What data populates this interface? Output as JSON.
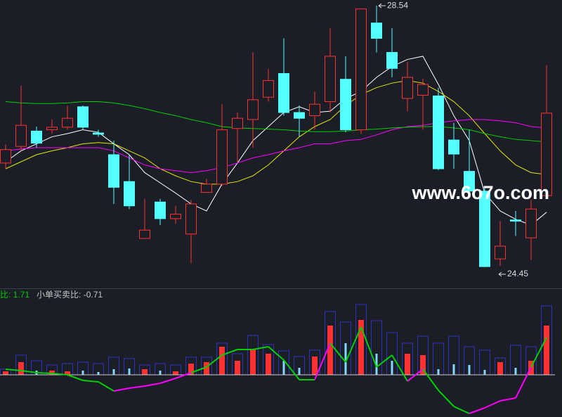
{
  "chart_data": [
    {
      "type": "candlestick",
      "ylim": [
        24.23,
        28.63
      ],
      "open": [
        26.08,
        26.34,
        26.58,
        26.6,
        26.64,
        26.96,
        26.55,
        26.21,
        25.79,
        24.9,
        25.47,
        25.21,
        24.97,
        25.62,
        25.75,
        26.62,
        26.76,
        27.11,
        27.48,
        26.87,
        26.82,
        27.04,
        27.39,
        26.6,
        28.27,
        27.81,
        27.09,
        27.14,
        27.13,
        26.44,
        25.95,
        25.64,
        24.58,
        25.19,
        24.91,
        25.57
      ],
      "high": [
        26.37,
        27.29,
        26.65,
        26.76,
        26.98,
        26.98,
        26.6,
        26.43,
        26.21,
        25.52,
        25.52,
        25.41,
        25.5,
        25.83,
        27.0,
        26.87,
        27.81,
        27.55,
        28.03,
        26.98,
        27.2,
        28.19,
        27.75,
        28.5,
        28.54,
        28.19,
        27.66,
        27.4,
        27.26,
        26.71,
        26.6,
        25.72,
        25.17,
        25.33,
        25.5,
        27.61
      ],
      "low": [
        25.99,
        26.27,
        26.32,
        26.54,
        26.6,
        26.6,
        26.49,
        25.44,
        25.36,
        24.9,
        25.11,
        25.13,
        24.51,
        25.62,
        25.72,
        26.1,
        26.32,
        27.04,
        26.82,
        26.49,
        26.6,
        26.87,
        26.56,
        26.54,
        27.81,
        27.42,
        26.89,
        26.6,
        25.97,
        25.99,
        25.61,
        24.45,
        24.47,
        24.94,
        24.56,
        25.55
      ],
      "close": [
        26.29,
        26.67,
        26.39,
        26.64,
        26.78,
        26.64,
        26.53,
        25.7,
        25.41,
        25.03,
        25.21,
        25.28,
        25.44,
        25.75,
        26.6,
        26.78,
        27.07,
        27.37,
        26.87,
        26.78,
        27.0,
        27.75,
        26.6,
        28.49,
        28.03,
        27.56,
        27.42,
        27.31,
        25.99,
        26.22,
        25.64,
        24.46,
        24.78,
        25.17,
        25.36,
        26.86
      ],
      "up_color": "#ff3232",
      "down_color": "#54ffff",
      "lines": [
        {
          "color": "#ffffff",
          "values": [
            26.1,
            26.27,
            26.38,
            26.49,
            26.54,
            26.6,
            26.56,
            26.38,
            26.21,
            25.93,
            25.77,
            25.61,
            25.44,
            25.33,
            25.75,
            26.08,
            26.43,
            26.65,
            26.87,
            26.96,
            26.87,
            26.89,
            27.09,
            27.2,
            27.42,
            27.59,
            27.7,
            27.75,
            27.31,
            26.82,
            26.43,
            25.61,
            25.33,
            25.2,
            25.11,
            25.31
          ]
        },
        {
          "color": "#e6e600",
          "values": [
            25.99,
            26.1,
            26.21,
            26.27,
            26.32,
            26.38,
            26.4,
            26.38,
            26.27,
            26.16,
            25.99,
            25.88,
            25.79,
            25.75,
            25.75,
            25.79,
            25.88,
            26.05,
            26.27,
            26.49,
            26.65,
            26.76,
            26.98,
            27.15,
            27.26,
            27.33,
            27.37,
            27.33,
            27.2,
            27.04,
            26.82,
            26.54,
            26.27,
            26.05,
            25.93,
            25.9
          ]
        },
        {
          "color": "#ff00ff",
          "values": [
            26.27,
            26.3,
            26.32,
            26.32,
            26.32,
            26.32,
            26.32,
            26.27,
            26.16,
            26.05,
            25.99,
            25.96,
            25.93,
            25.96,
            26.01,
            26.08,
            26.16,
            26.21,
            26.27,
            26.32,
            26.38,
            26.38,
            26.43,
            26.45,
            26.52,
            26.6,
            26.65,
            26.67,
            26.71,
            26.74,
            26.76,
            26.76,
            26.74,
            26.71,
            26.65,
            26.63
          ]
        },
        {
          "color": "#00d000",
          "values": [
            27.04,
            27.02,
            27.01,
            27.01,
            27.02,
            27.04,
            27.04,
            27.02,
            26.98,
            26.93,
            26.87,
            26.82,
            26.76,
            26.71,
            26.65,
            26.63,
            26.62,
            26.61,
            26.6,
            26.58,
            26.57,
            26.57,
            26.58,
            26.6,
            26.61,
            26.63,
            26.64,
            26.65,
            26.65,
            26.63,
            26.6,
            26.54,
            26.49,
            26.45,
            26.43,
            26.41
          ]
        }
      ],
      "watermark": "www.6o7o.com"
    },
    {
      "type": "indicator",
      "ylim": [
        -6,
        12.3
      ],
      "legend": [
        {
          "text": "比: 1.71",
          "color": "#00d000"
        },
        {
          "text": "小单买卖比: -0.71",
          "color": "#c8c8c8"
        }
      ],
      "outline_color": "#3030c0",
      "outline": [
        0.8,
        2.8,
        2.0,
        1.4,
        1.6,
        1.8,
        1.6,
        2.5,
        2.3,
        1.4,
        1.6,
        1.4,
        2.5,
        2.5,
        4.5,
        3.0,
        5.6,
        4.3,
        3.4,
        2.6,
        3.5,
        9.0,
        7.5,
        10.0,
        7.7,
        6.0,
        4.5,
        5.5,
        4.5,
        5.5,
        4.0,
        3.5,
        2.4,
        4.2,
        4.0,
        9.8
      ],
      "inner": [
        0.5,
        1.8,
        0.6,
        0.6,
        0.5,
        0.6,
        0.4,
        0.8,
        0.9,
        0.8,
        0.6,
        0.5,
        1.6,
        1.8,
        4.0,
        2.0,
        3.6,
        3.0,
        2.0,
        1.0,
        2.6,
        7.0,
        4.5,
        7.8,
        3.0,
        2.0,
        3.0,
        2.8,
        0.8,
        1.5,
        1.4,
        0.7,
        1.8,
        1.0,
        2.0,
        7.0
      ],
      "line": [
        0.8,
        0.6,
        0.3,
        0.2,
        0.0,
        -0.8,
        -1.0,
        -2.3,
        -1.9,
        -1.6,
        -1.2,
        -0.5,
        0.3,
        1.1,
        2.8,
        3.6,
        3.6,
        4.0,
        2.1,
        -0.7,
        -0.7,
        4.5,
        1.8,
        6.8,
        1.1,
        2.8,
        -0.9,
        0.8,
        -2.2,
        -4.5,
        -5.5,
        -4.7,
        -3.7,
        -3.3,
        1.1,
        5.3
      ],
      "line_colors": [
        "#00d000",
        "#ff00ff"
      ]
    }
  ]
}
